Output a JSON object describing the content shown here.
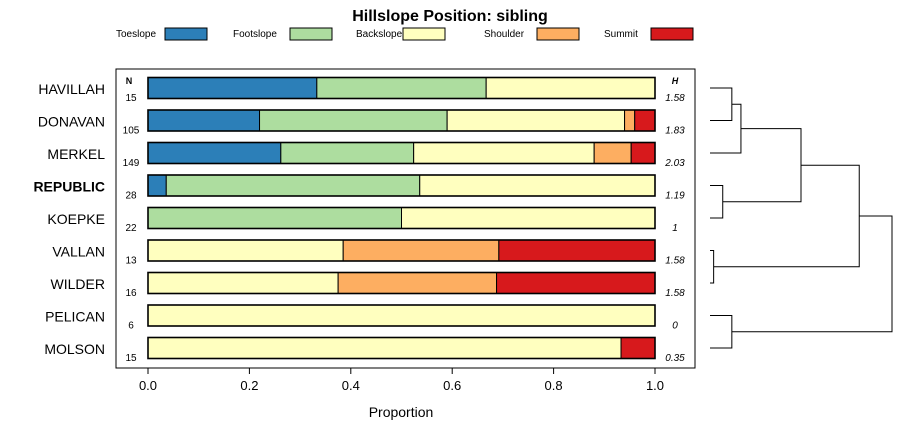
{
  "chart_data": {
    "type": "bar",
    "orientation": "horizontal",
    "stacked": true,
    "title": "Hillslope Position: sibling",
    "xlabel": "Proportion",
    "xlim": [
      0,
      1
    ],
    "x_ticks": [
      "0.0",
      "0.2",
      "0.4",
      "0.6",
      "0.8",
      "1.0"
    ],
    "n_header": "N",
    "h_header": "H",
    "legend_position": "top",
    "series": [
      {
        "name": "Toeslope",
        "color": "#2c7fb8"
      },
      {
        "name": "Footslope",
        "color": "#addd9f"
      },
      {
        "name": "Backslope",
        "color": "#ffffbf"
      },
      {
        "name": "Shoulder",
        "color": "#fdae61"
      },
      {
        "name": "Summit",
        "color": "#d7191c"
      }
    ],
    "rows": [
      {
        "label": "HAVILLAH",
        "n": "15",
        "h": "1.58",
        "bold": false,
        "values": [
          0.333,
          0.334,
          0.333,
          0,
          0
        ]
      },
      {
        "label": "DONAVAN",
        "n": "105",
        "h": "1.83",
        "bold": false,
        "values": [
          0.22,
          0.37,
          0.35,
          0.02,
          0.04
        ]
      },
      {
        "label": "MERKEL",
        "n": "149",
        "h": "2.03",
        "bold": false,
        "values": [
          0.262,
          0.262,
          0.356,
          0.073,
          0.047
        ]
      },
      {
        "label": "REPUBLIC",
        "n": "28",
        "h": "1.19",
        "bold": true,
        "values": [
          0.036,
          0.5,
          0.464,
          0,
          0
        ]
      },
      {
        "label": "KOEPKE",
        "n": "22",
        "h": "1",
        "bold": false,
        "values": [
          0,
          0.5,
          0.5,
          0,
          0
        ]
      },
      {
        "label": "VALLAN",
        "n": "13",
        "h": "1.58",
        "bold": false,
        "values": [
          0,
          0,
          0.385,
          0.307,
          0.308
        ]
      },
      {
        "label": "WILDER",
        "n": "16",
        "h": "1.58",
        "bold": false,
        "values": [
          0,
          0,
          0.375,
          0.3125,
          0.3125
        ]
      },
      {
        "label": "PELICAN",
        "n": "6",
        "h": "0",
        "bold": false,
        "values": [
          0,
          0,
          1,
          0,
          0
        ]
      },
      {
        "label": "MOLSON",
        "n": "15",
        "h": "0.35",
        "bold": false,
        "values": [
          0,
          0,
          0.933,
          0,
          0.067
        ]
      }
    ],
    "dendrogram": {
      "leaves": [
        "HAVILLAH",
        "DONAVAN",
        "MERKEL",
        "REPUBLIC",
        "KOEPKE",
        "VALLAN",
        "WILDER",
        "PELICAN",
        "MOLSON"
      ],
      "merges": [
        {
          "a": "HAVILLAH",
          "b": "DONAVAN",
          "height": 0.12
        },
        {
          "a": "VALLAN",
          "b": "WILDER",
          "height": 0.02
        },
        {
          "a": "REPUBLIC",
          "b": "KOEPKE",
          "height": 0.07
        },
        {
          "a": "PELICAN",
          "b": "MOLSON",
          "height": 0.12
        },
        {
          "a": "HAVILLAH+DONAVAN",
          "b": "MERKEL",
          "height": 0.17
        },
        {
          "a": "HAVILLAH+DONAVAN+MERKEL",
          "b": "REPUBLIC+KOEPKE",
          "height": 0.5
        },
        {
          "a": "HAVILLAH+DONAVAN+MERKEL+REPUBLIC+KOEPKE",
          "b": "VALLAN+WILDER",
          "height": 0.82
        },
        {
          "a": "HAVILLAH+DONAVAN+MERKEL+REPUBLIC+KOEPKE+VALLAN+WILDER",
          "b": "PELICAN+MOLSON",
          "height": 1.0
        }
      ]
    }
  }
}
